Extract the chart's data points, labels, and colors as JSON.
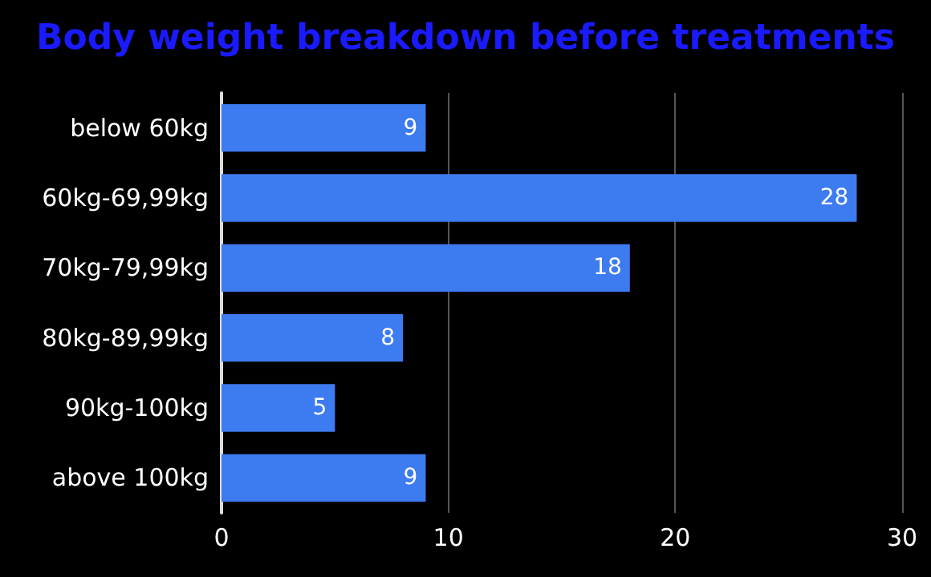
{
  "chart_data": {
    "type": "bar",
    "orientation": "horizontal",
    "title": "Body weight breakdown before treatments",
    "categories": [
      "below 60kg",
      "60kg-69,99kg",
      "70kg-79,99kg",
      "80kg-89,99kg",
      "90kg-100kg",
      "above 100kg"
    ],
    "values": [
      9,
      28,
      18,
      8,
      5,
      9
    ],
    "color": "#3d7bf0",
    "xlim": [
      0,
      30
    ],
    "xticks": [
      0,
      10,
      20,
      30
    ],
    "grid": "x",
    "data_labels": true
  }
}
